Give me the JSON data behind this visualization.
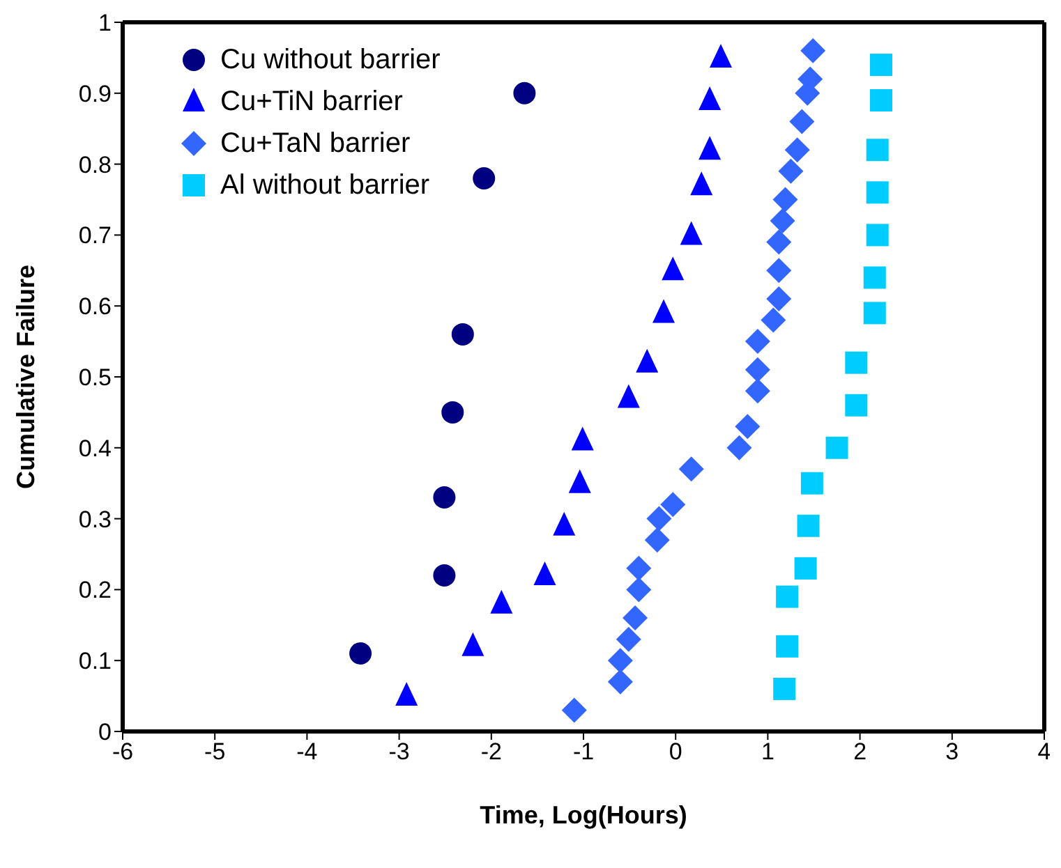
{
  "chart_data": {
    "type": "scatter",
    "xlabel": "Time, Log(Hours)",
    "ylabel": "Cumulative Failure",
    "xlim": [
      -6,
      4
    ],
    "xticks": [
      -6,
      -5,
      -4,
      -3,
      -2,
      -1,
      0,
      1,
      2,
      3,
      4
    ],
    "ylim": [
      0,
      1
    ],
    "yticks": [
      0,
      0.1,
      0.2,
      0.3,
      0.4,
      0.5,
      0.6,
      0.7,
      0.8,
      0.9,
      1
    ],
    "grid": false,
    "legend": "top left",
    "series": [
      {
        "name": "Cu without barrier",
        "color": "#000080",
        "marker": "circle",
        "x": [
          -3.42,
          -2.51,
          -2.51,
          -2.42,
          -2.31,
          -2.08,
          -1.64
        ],
        "values": [
          0.11,
          0.22,
          0.33,
          0.45,
          0.56,
          0.78,
          0.9
        ]
      },
      {
        "name": "Cu+TiN barrier",
        "color": "#0000ff",
        "marker": "triangle",
        "x": [
          -2.92,
          -2.2,
          -1.89,
          -1.42,
          -1.21,
          -1.04,
          -1.01,
          -0.51,
          -0.31,
          -0.13,
          -0.03,
          0.17,
          0.28,
          0.37,
          0.37,
          0.49
        ],
        "values": [
          0.05,
          0.12,
          0.18,
          0.22,
          0.29,
          0.35,
          0.41,
          0.47,
          0.52,
          0.59,
          0.65,
          0.7,
          0.77,
          0.82,
          0.89,
          0.95
        ]
      },
      {
        "name": "Cu+TaN barrier",
        "color": "#3366ff",
        "marker": "diamond",
        "x": [
          -1.1,
          -0.6,
          -0.6,
          -0.51,
          -0.44,
          -0.4,
          -0.4,
          -0.2,
          -0.18,
          -0.03,
          0.17,
          0.69,
          0.78,
          0.89,
          0.89,
          0.89,
          1.06,
          1.12,
          1.12,
          1.12,
          1.16,
          1.19,
          1.25,
          1.32,
          1.37,
          1.43,
          1.46,
          1.49
        ],
        "values": [
          0.03,
          0.07,
          0.1,
          0.13,
          0.16,
          0.2,
          0.23,
          0.27,
          0.3,
          0.32,
          0.37,
          0.4,
          0.43,
          0.48,
          0.51,
          0.55,
          0.58,
          0.61,
          0.65,
          0.69,
          0.72,
          0.75,
          0.79,
          0.82,
          0.86,
          0.9,
          0.92,
          0.96
        ]
      },
      {
        "name": "Al without barrier",
        "color": "#00ccff",
        "marker": "square",
        "x": [
          1.18,
          1.21,
          1.21,
          1.41,
          1.44,
          1.48,
          1.75,
          1.96,
          1.96,
          2.16,
          2.16,
          2.19,
          2.19,
          2.19,
          2.23,
          2.23
        ],
        "values": [
          0.06,
          0.12,
          0.19,
          0.23,
          0.29,
          0.35,
          0.4,
          0.46,
          0.52,
          0.59,
          0.64,
          0.7,
          0.76,
          0.82,
          0.89,
          0.94
        ]
      }
    ]
  }
}
